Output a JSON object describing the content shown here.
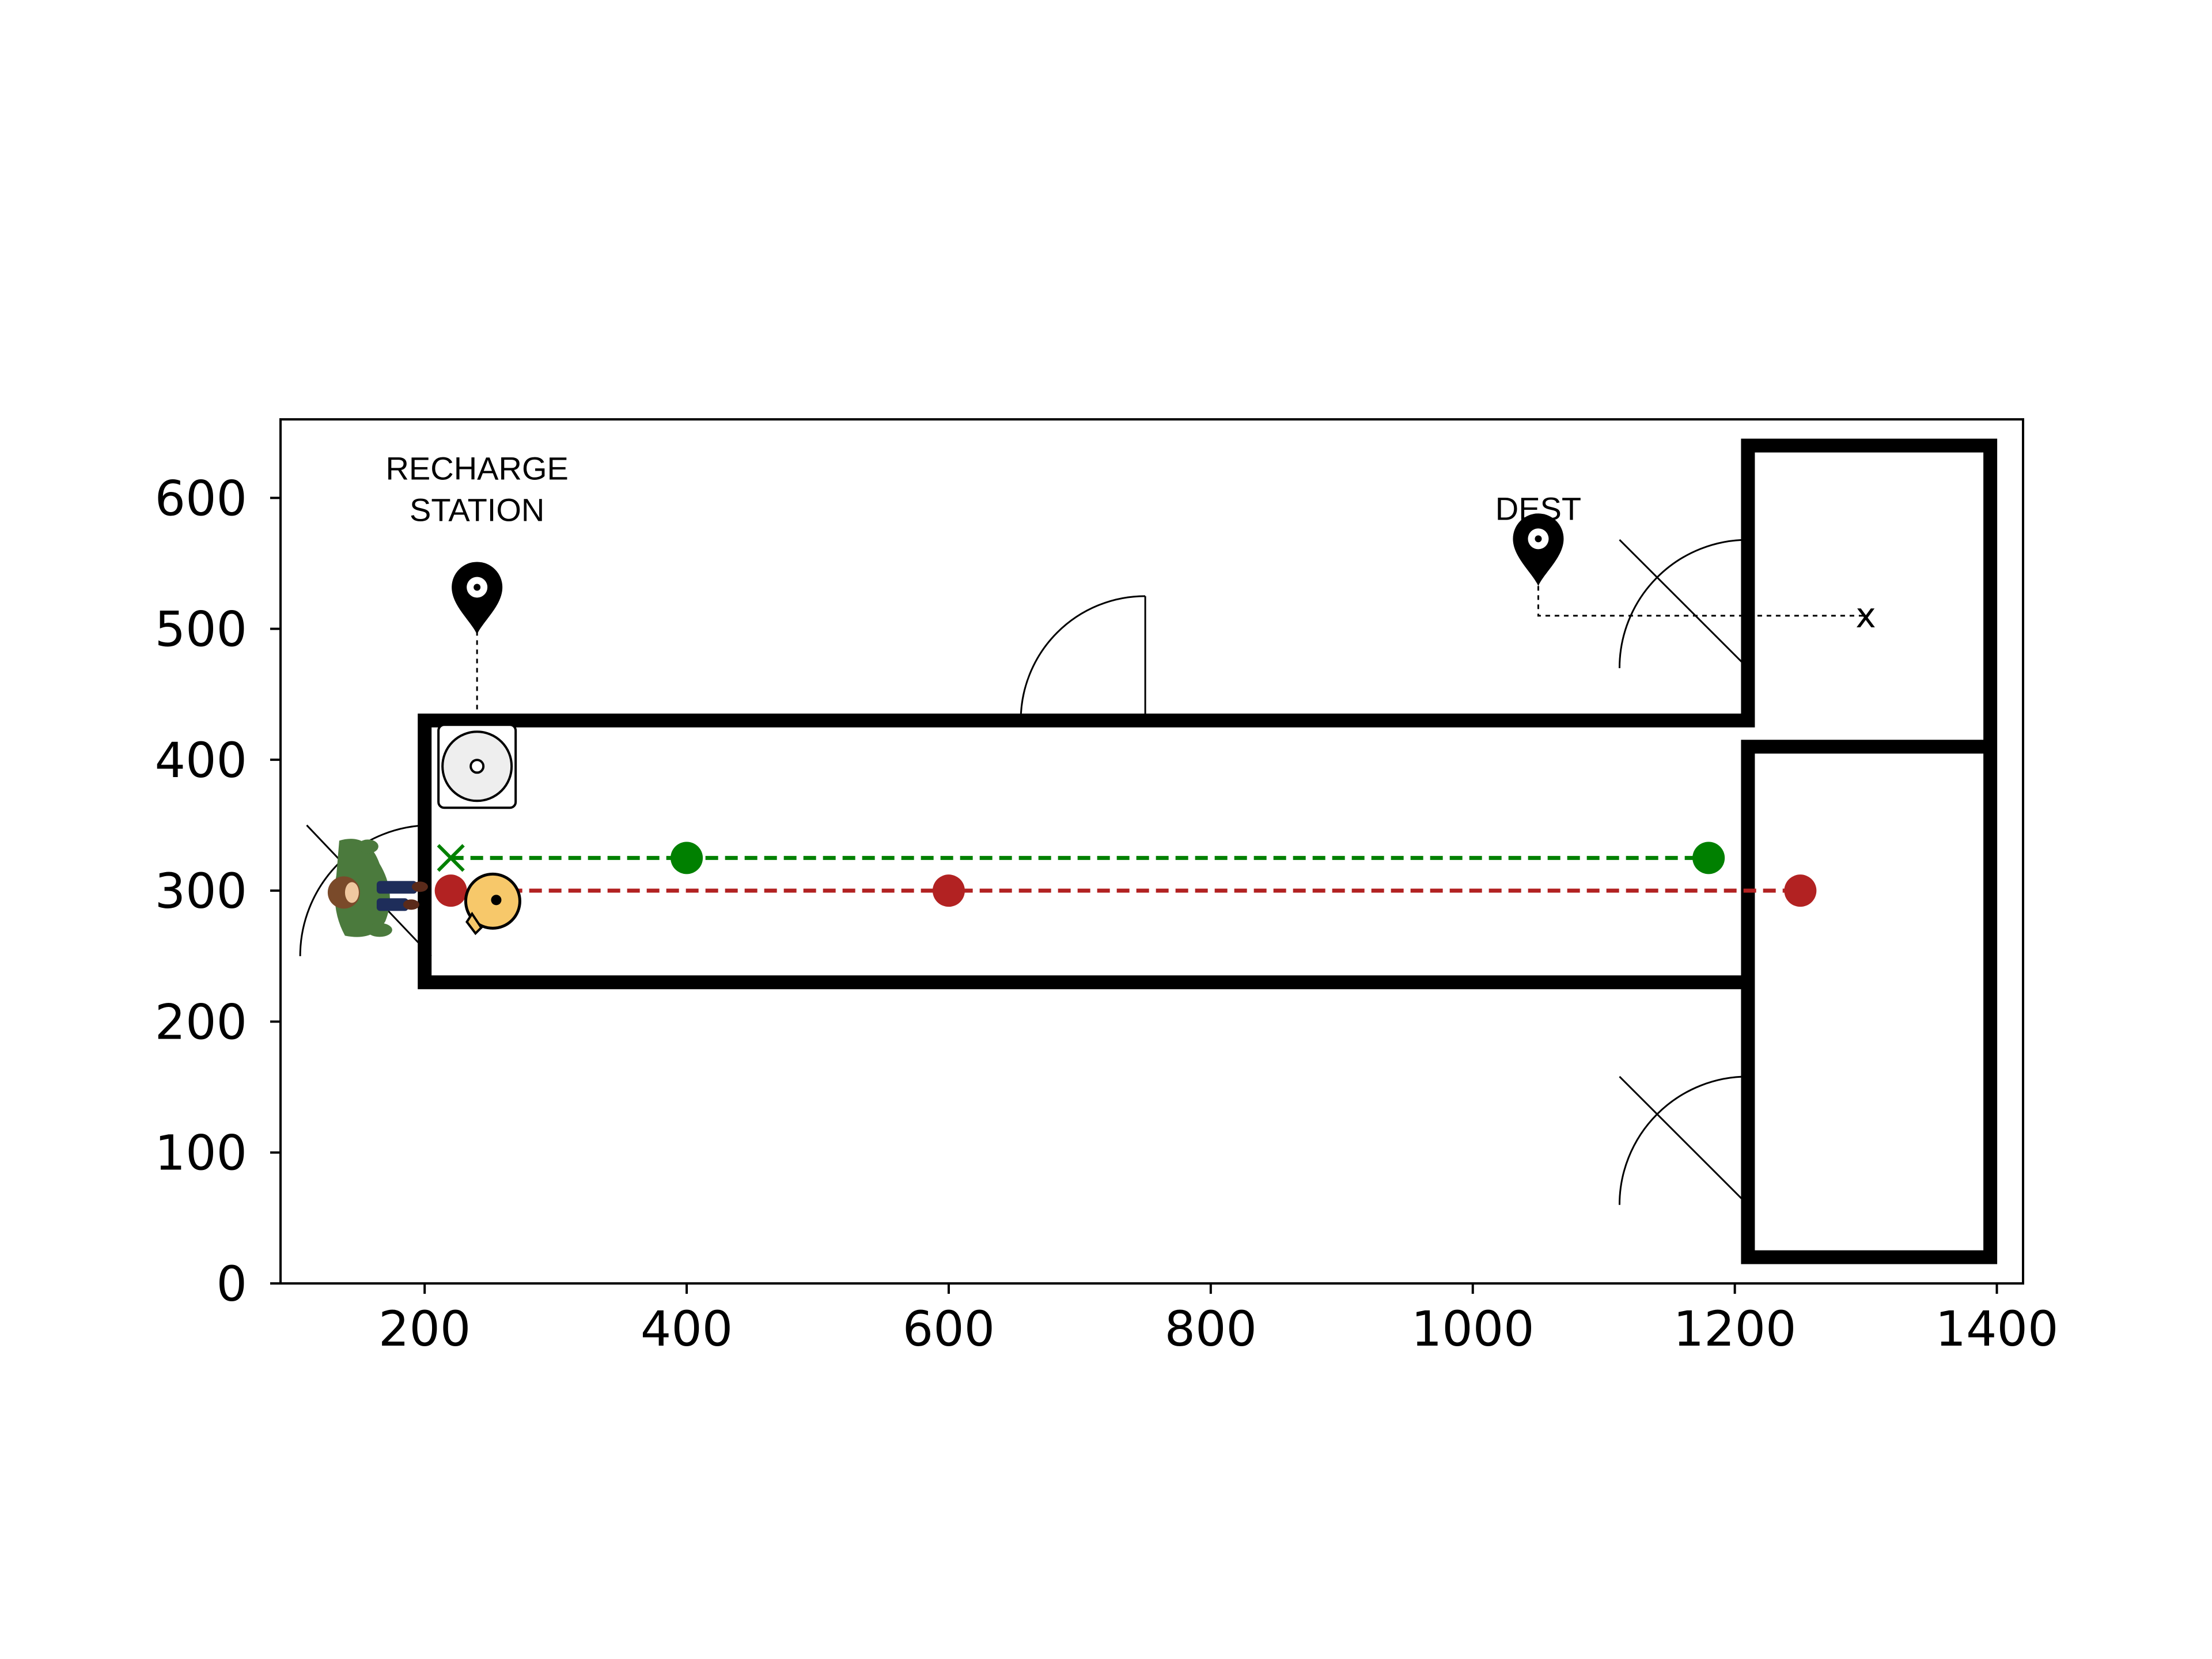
{
  "chart_data": {
    "type": "scatter",
    "title": "",
    "xlabel": "",
    "ylabel": "",
    "xlim": [
      90,
      1420
    ],
    "ylim": [
      0,
      660
    ],
    "grid": false,
    "legend": "none",
    "xticks": [
      200,
      400,
      600,
      800,
      1000,
      1200,
      1400
    ],
    "yticks": [
      0,
      100,
      200,
      300,
      400,
      500,
      600
    ],
    "series": [
      {
        "color": "#008000",
        "linestyle": "dashed",
        "points": [
          [
            220,
            325
          ],
          [
            400,
            325
          ],
          [
            1180,
            325
          ]
        ],
        "start_marker": "x"
      },
      {
        "color": "#b22222",
        "linestyle": "dashed",
        "points": [
          [
            220,
            300
          ],
          [
            600,
            300
          ],
          [
            1250,
            300
          ]
        ]
      }
    ],
    "floorplan": {
      "walls": [
        [
          [
            1210,
            230
          ],
          [
            1210,
            410
          ],
          [
            1395,
            410
          ],
          [
            1395,
            20
          ],
          [
            1210,
            20
          ],
          [
            1210,
            230
          ],
          [
            200,
            230
          ],
          [
            200,
            430
          ],
          [
            1210,
            430
          ],
          [
            1210,
            640
          ],
          [
            1395,
            640
          ],
          [
            1395,
            410
          ]
        ]
      ],
      "doors": [
        {
          "name": "door-left",
          "hinge": [
            205,
            250
          ],
          "radius": 100,
          "start_deg": 90,
          "end_deg": 180,
          "leaf_to": [
            110,
            350
          ]
        },
        {
          "name": "door-top",
          "hinge": [
            750,
            430
          ],
          "radius": 95,
          "start_deg": 90,
          "end_deg": 180,
          "leaf_to": [
            750,
            525
          ]
        },
        {
          "name": "door-right-upper",
          "hinge": [
            1210,
            470
          ],
          "radius": 98,
          "start_deg": 90,
          "end_deg": 180,
          "leaf_to": [
            1112,
            568
          ]
        },
        {
          "name": "door-right-lower",
          "hinge": [
            1210,
            60
          ],
          "radius": 98,
          "start_deg": 90,
          "end_deg": 180,
          "leaf_to": [
            1112,
            158
          ]
        }
      ]
    },
    "annotations": [
      {
        "name": "recharge-station-label",
        "lines": [
          "RECHARGE",
          "STATION"
        ],
        "x": 240,
        "y": 600
      },
      {
        "name": "dest-label",
        "lines": [
          "DEST"
        ],
        "x": 1050,
        "y": 600
      },
      {
        "name": "destination-x",
        "text": "x",
        "x": 1300,
        "y": 510
      }
    ],
    "pins": [
      {
        "name": "recharge-pin",
        "x": 240,
        "y": 530,
        "leader_to": [
          240,
          435
        ]
      },
      {
        "name": "dest-pin",
        "x": 1050,
        "y": 567,
        "leader_to": [
          1050,
          510
        ],
        "leader_end": [
          1300,
          510
        ]
      }
    ],
    "objects": [
      {
        "name": "recharge-dock",
        "icon": "charging-dock-icon",
        "x": 240,
        "y": 395
      },
      {
        "name": "robot-vacuum",
        "icon": "robot-vacuum-icon",
        "x": 252,
        "y": 292
      },
      {
        "name": "person",
        "icon": "person-topdown-icon",
        "x": 148,
        "y": 303
      }
    ]
  }
}
